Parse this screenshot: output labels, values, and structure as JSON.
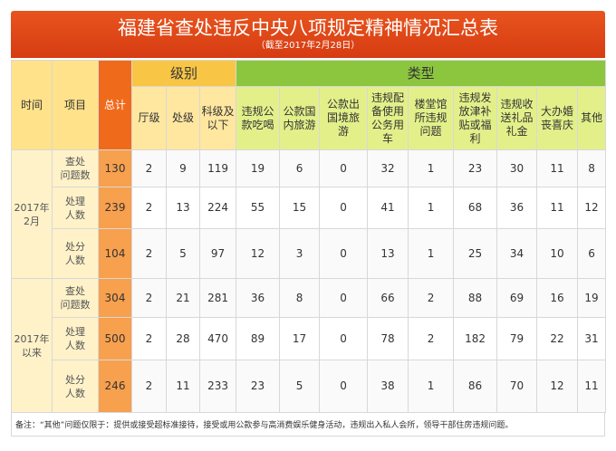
{
  "header": {
    "title": "福建省查处违反中央八项规定精神情况汇总表",
    "subtitle": "（截至2017年2月28日）"
  },
  "table": {
    "columns": {
      "time": "时间",
      "item": "项目",
      "total": "总计",
      "level": "级别",
      "type": "类型",
      "level_cols": [
        "厅级",
        "处级",
        "科级及\n以下"
      ],
      "type_cols": [
        "违规公\n款吃喝",
        "公款国\n内旅游",
        "公款出\n国境旅\n游",
        "违规配\n备使用\n公务用\n车",
        "楼堂馆\n所违规\n问题",
        "违规发\n放津补\n贴或福\n利",
        "违规收\n送礼品\n礼金",
        "大办婚\n丧喜庆",
        "其他"
      ]
    },
    "groups": [
      {
        "time": "2017年\n2月",
        "rows": [
          {
            "item": "查处\n问题数",
            "values": [
              130,
              2,
              9,
              119,
              19,
              6,
              0,
              32,
              1,
              23,
              30,
              11,
              8
            ]
          },
          {
            "item": "处理\n人数",
            "values": [
              239,
              2,
              13,
              224,
              55,
              15,
              0,
              41,
              1,
              68,
              36,
              11,
              12
            ]
          },
          {
            "item": "处分\n人数",
            "values": [
              104,
              2,
              5,
              97,
              12,
              3,
              0,
              13,
              1,
              25,
              34,
              10,
              6
            ]
          }
        ]
      },
      {
        "time": "2017年\n以来",
        "rows": [
          {
            "item": "查处\n问题数",
            "values": [
              304,
              2,
              21,
              281,
              36,
              8,
              0,
              66,
              2,
              88,
              69,
              16,
              19
            ]
          },
          {
            "item": "处理\n人数",
            "values": [
              500,
              2,
              28,
              470,
              89,
              17,
              0,
              78,
              2,
              182,
              79,
              22,
              31
            ]
          },
          {
            "item": "处分\n人数",
            "values": [
              246,
              2,
              11,
              233,
              23,
              5,
              0,
              38,
              1,
              86,
              70,
              12,
              11
            ]
          }
        ]
      }
    ],
    "note": "备注：“其他”问题仅限于：提供或接受超标准接待，接受或用公款参与高消费娱乐健身活动，违规出入私人会所，领导干部住房违规问题。"
  }
}
